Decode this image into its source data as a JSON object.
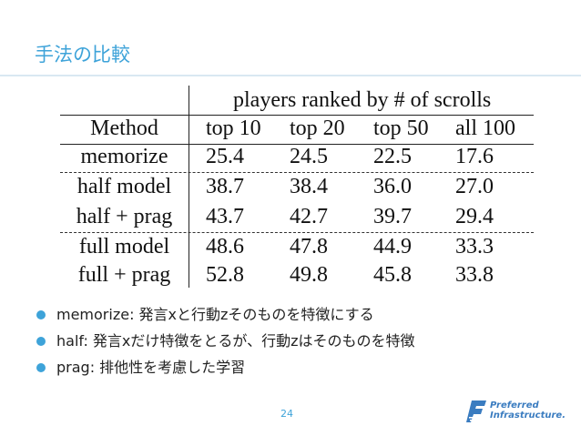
{
  "slide": {
    "title": "手法の比較",
    "page_number": "24"
  },
  "table": {
    "group_header": "players ranked by # of scrolls",
    "method_header": "Method",
    "columns": [
      "top 10",
      "top 20",
      "top 50",
      "all 100"
    ],
    "rows": [
      {
        "method": "memorize",
        "values": [
          "25.4",
          "24.5",
          "22.5",
          "17.6"
        ]
      },
      {
        "method": "half model",
        "values": [
          "38.7",
          "38.4",
          "36.0",
          "27.0"
        ]
      },
      {
        "method": "half + prag",
        "values": [
          "43.7",
          "42.7",
          "39.7",
          "29.4"
        ]
      },
      {
        "method": "full model",
        "values": [
          "48.6",
          "47.8",
          "44.9",
          "33.3"
        ]
      },
      {
        "method": "full + prag",
        "values": [
          "52.8",
          "49.8",
          "45.8",
          "33.8"
        ]
      }
    ]
  },
  "bullets": [
    "memorize: 発言xと行動zそのものを特徴にする",
    "half: 発言xだけ特徴をとるが、行動zはそのものを特徴",
    "prag: 排他性を考慮した学習"
  ],
  "logo": {
    "line1": "Preferred",
    "line2": "Infrastructure."
  },
  "colors": {
    "accent": "#3ea3d9",
    "logo": "#3a7cc0"
  }
}
